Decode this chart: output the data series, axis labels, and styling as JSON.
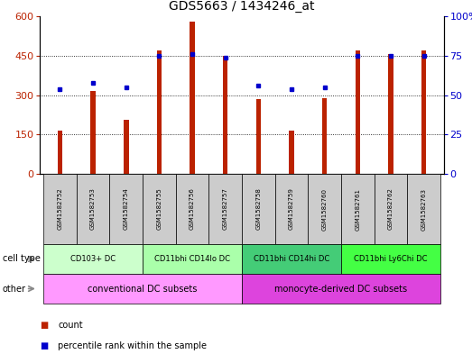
{
  "title": "GDS5663 / 1434246_at",
  "samples": [
    "GSM1582752",
    "GSM1582753",
    "GSM1582754",
    "GSM1582755",
    "GSM1582756",
    "GSM1582757",
    "GSM1582758",
    "GSM1582759",
    "GSM1582760",
    "GSM1582761",
    "GSM1582762",
    "GSM1582763"
  ],
  "counts": [
    163,
    315,
    205,
    470,
    580,
    450,
    283,
    163,
    288,
    470,
    455,
    470
  ],
  "percentiles": [
    54,
    58,
    55,
    75,
    76,
    74,
    56,
    54,
    55,
    75,
    75,
    75
  ],
  "ylim_left": [
    0,
    600
  ],
  "ylim_right": [
    0,
    100
  ],
  "yticks_left": [
    0,
    150,
    300,
    450,
    600
  ],
  "yticks_right": [
    0,
    25,
    50,
    75,
    100
  ],
  "bar_color": "#bb2200",
  "dot_color": "#0000cc",
  "cell_type_colors": [
    "#ccffcc",
    "#aaffaa",
    "#44cc77",
    "#44ff44"
  ],
  "other_colors": [
    "#ff99ff",
    "#dd44dd"
  ],
  "cell_type_groups": [
    {
      "label": "CD103+ DC",
      "start": 0,
      "end": 2
    },
    {
      "label": "CD11bhi CD14lo DC",
      "start": 3,
      "end": 5
    },
    {
      "label": "CD11bhi CD14hi DC",
      "start": 6,
      "end": 8
    },
    {
      "label": "CD11bhi Ly6Chi DC",
      "start": 9,
      "end": 11
    }
  ],
  "other_groups": [
    {
      "label": "conventional DC subsets",
      "start": 0,
      "end": 5
    },
    {
      "label": "monocyte-derived DC subsets",
      "start": 6,
      "end": 11
    }
  ],
  "sample_bg_color": "#cccccc",
  "legend_count_color": "#bb2200",
  "legend_pct_color": "#0000cc",
  "bar_width": 0.15
}
